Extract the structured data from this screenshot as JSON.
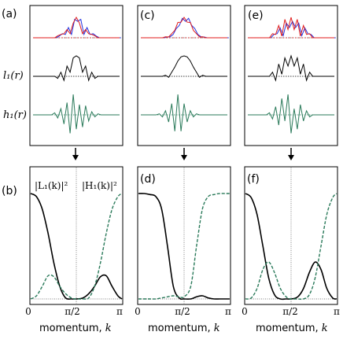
{
  "figure": {
    "side_labels": {
      "l": "l₁(r)",
      "h": "h₁(r)"
    },
    "spectrum_labels": {
      "L": "|L₁(k)|²",
      "H": "|H₁(k)|²"
    },
    "x_ticks": [
      "0",
      "π/2",
      "π"
    ],
    "x_label": "momentum, ",
    "x_label_var": "k",
    "top_panels": [
      "(a)",
      "(c)",
      "(e)"
    ],
    "bottom_panels": [
      "(b)",
      "(d)",
      "(f)"
    ]
  },
  "colors": {
    "red": "#e01b1b",
    "blue": "#2030e0",
    "black": "#000000",
    "green": "#2a7a5a",
    "dotted": "#555555"
  },
  "chart_data": [
    {
      "type": "line",
      "panel": "(b)",
      "xlim": [
        0,
        3.14159
      ],
      "series": [
        {
          "name": "|L₁(k)|²",
          "style": "solid-black",
          "x": [
            0,
            0.2,
            0.4,
            0.6,
            0.8,
            1.0,
            1.2,
            1.4,
            1.57,
            1.8,
            2.0,
            2.2,
            2.4,
            2.6,
            2.8,
            3.0,
            3.14
          ],
          "y": [
            1.0,
            0.97,
            0.85,
            0.62,
            0.34,
            0.12,
            0.01,
            0.0,
            0.0,
            0.01,
            0.05,
            0.12,
            0.21,
            0.22,
            0.12,
            0.03,
            0.0
          ]
        },
        {
          "name": "|H₁(k)|²",
          "style": "dashed-green",
          "x": [
            0,
            0.2,
            0.4,
            0.6,
            0.8,
            1.0,
            1.2,
            1.4,
            1.57,
            1.8,
            2.0,
            2.2,
            2.4,
            2.6,
            2.8,
            3.0,
            3.14
          ],
          "y": [
            0.0,
            0.03,
            0.12,
            0.22,
            0.21,
            0.12,
            0.05,
            0.01,
            0.0,
            0.0,
            0.01,
            0.12,
            0.34,
            0.62,
            0.85,
            0.97,
            1.0
          ]
        }
      ]
    },
    {
      "type": "line",
      "panel": "(d)",
      "xlim": [
        0,
        3.14159
      ],
      "series": [
        {
          "style": "solid-black",
          "x": [
            0,
            0.2,
            0.4,
            0.6,
            0.8,
            1.0,
            1.2,
            1.4,
            1.57,
            1.8,
            2.0,
            2.2,
            2.4,
            2.6,
            2.8,
            3.0,
            3.14
          ],
          "y": [
            1.0,
            1.0,
            0.99,
            0.97,
            0.85,
            0.5,
            0.12,
            0.01,
            0.0,
            0.0,
            0.02,
            0.03,
            0.01,
            0.0,
            0.0,
            0.0,
            0.0
          ]
        },
        {
          "style": "dashed-green",
          "x": [
            0,
            0.2,
            0.4,
            0.6,
            0.8,
            1.0,
            1.2,
            1.4,
            1.57,
            1.8,
            2.0,
            2.2,
            2.4,
            2.6,
            2.8,
            3.0,
            3.14
          ],
          "y": [
            0.0,
            0.0,
            0.0,
            0.0,
            0.01,
            0.02,
            0.03,
            0.02,
            0.02,
            0.12,
            0.5,
            0.85,
            0.97,
            0.99,
            1.0,
            1.0,
            1.0
          ]
        }
      ]
    },
    {
      "type": "line",
      "panel": "(f)",
      "xlim": [
        0,
        3.14159
      ],
      "series": [
        {
          "style": "solid-black",
          "x": [
            0,
            0.2,
            0.4,
            0.6,
            0.8,
            1.0,
            1.2,
            1.4,
            1.57,
            1.8,
            2.0,
            2.2,
            2.4,
            2.6,
            2.8,
            3.0,
            3.14
          ],
          "y": [
            1.0,
            0.96,
            0.8,
            0.5,
            0.2,
            0.04,
            0.0,
            0.0,
            0.0,
            0.02,
            0.1,
            0.25,
            0.35,
            0.28,
            0.1,
            0.01,
            0.0
          ]
        },
        {
          "style": "dashed-green",
          "x": [
            0,
            0.2,
            0.4,
            0.6,
            0.8,
            1.0,
            1.2,
            1.4,
            1.57,
            1.8,
            2.0,
            2.2,
            2.4,
            2.6,
            2.8,
            3.0,
            3.14
          ],
          "y": [
            0.0,
            0.01,
            0.1,
            0.28,
            0.35,
            0.25,
            0.1,
            0.02,
            0.0,
            0.0,
            0.0,
            0.04,
            0.2,
            0.5,
            0.8,
            0.96,
            1.0
          ]
        }
      ]
    }
  ],
  "wavelets": {
    "l_c": [
      0,
      0,
      0,
      0,
      0,
      0,
      0,
      0,
      0.05,
      -0.05,
      0.2,
      0.45,
      0.75,
      0.95,
      1.0,
      0.95,
      0.75,
      0.45,
      0.2,
      -0.05,
      0.05,
      0,
      0,
      0,
      0,
      0,
      0,
      0,
      0
    ],
    "l_a": [
      0,
      0,
      0,
      0,
      0,
      0,
      0,
      0,
      -0.1,
      0.2,
      -0.2,
      0.5,
      0.2,
      0.9,
      1.0,
      0.9,
      0.2,
      0.5,
      -0.2,
      0.2,
      -0.1,
      0,
      0,
      0,
      0,
      0,
      0,
      0,
      0
    ],
    "l_e": [
      0,
      0,
      0,
      0,
      0,
      0,
      0,
      0,
      0.2,
      -0.2,
      0.6,
      0.1,
      0.9,
      0.5,
      1.0,
      0.5,
      0.9,
      0.1,
      0.6,
      -0.2,
      0.2,
      0,
      0,
      0,
      0,
      0,
      0,
      0,
      0
    ],
    "h_a": [
      0,
      0,
      0,
      0,
      0,
      0,
      0,
      0.1,
      -0.15,
      0.3,
      -0.45,
      0.6,
      -0.9,
      1.0,
      -0.7,
      0.5,
      -0.6,
      0.45,
      -0.3,
      0.15,
      -0.1,
      0.05,
      0,
      0,
      0,
      0,
      0,
      0,
      0
    ],
    "h_c": [
      0,
      0,
      0,
      0,
      0,
      0,
      0.05,
      -0.1,
      0.2,
      -0.35,
      0.55,
      -0.8,
      1.0,
      -0.8,
      0.55,
      -0.35,
      0.2,
      -0.1,
      0.05,
      0,
      0,
      0,
      0,
      0,
      0,
      0,
      0,
      0,
      0
    ],
    "h_e": [
      0,
      0,
      0,
      0,
      0,
      0,
      0,
      0.1,
      -0.2,
      0.4,
      -0.5,
      0.8,
      -0.3,
      1.0,
      -0.9,
      0.3,
      -0.7,
      0.5,
      -0.3,
      0.2,
      -0.1,
      0,
      0,
      0,
      0,
      0,
      0,
      0,
      0
    ]
  }
}
